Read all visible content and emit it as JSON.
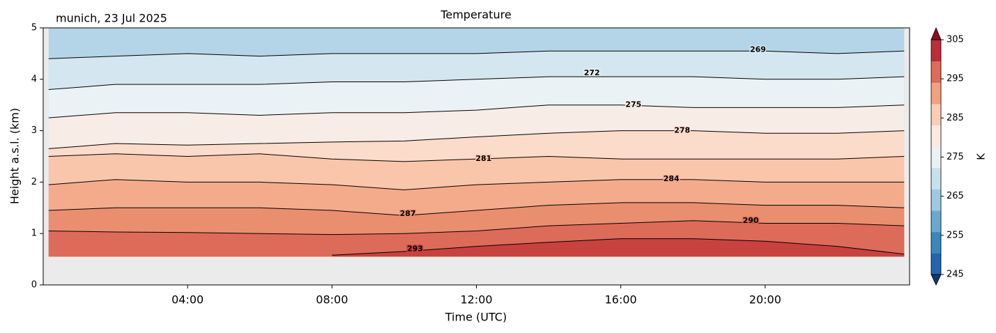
{
  "chart_data": {
    "type": "contour",
    "title": "Temperature",
    "annotation": "munich, 23 Jul 2025",
    "xlabel": "Time (UTC)",
    "ylabel": "Height a.s.l. (km)",
    "xlim": [
      0,
      24
    ],
    "ylim": [
      0,
      5
    ],
    "xticks": [
      {
        "value": 4,
        "label": "04:00"
      },
      {
        "value": 8,
        "label": "08:00"
      },
      {
        "value": 12,
        "label": "12:00"
      },
      {
        "value": 16,
        "label": "16:00"
      },
      {
        "value": 20,
        "label": "20:00"
      }
    ],
    "yticks": [
      0,
      1,
      2,
      3,
      4,
      5
    ],
    "data_bottom": 0.55,
    "background": "#ebebeb",
    "top_fill": "#b4d5e8",
    "x": [
      0.15,
      2,
      4,
      6,
      8,
      10,
      12,
      14,
      16,
      18,
      20,
      22,
      23.85
    ],
    "series": [
      {
        "name": "269",
        "color": "#000000",
        "fill": "#d4e6f0",
        "label_at": [
          19.8,
          4.57
        ],
        "values": [
          4.4,
          4.45,
          4.5,
          4.45,
          4.5,
          4.5,
          4.5,
          4.55,
          4.55,
          4.55,
          4.55,
          4.5,
          4.55
        ]
      },
      {
        "name": "272",
        "color": "#000000",
        "fill": "#ebf2f5",
        "label_at": [
          15.2,
          4.12
        ],
        "values": [
          3.8,
          3.9,
          3.9,
          3.9,
          3.95,
          3.95,
          4.0,
          4.05,
          4.05,
          4.05,
          4.0,
          4.0,
          4.05
        ]
      },
      {
        "name": "275",
        "color": "#000000",
        "fill": "#f8ece6",
        "label_at": [
          16.35,
          3.5
        ],
        "values": [
          3.25,
          3.35,
          3.35,
          3.3,
          3.35,
          3.35,
          3.4,
          3.5,
          3.5,
          3.45,
          3.45,
          3.45,
          3.5
        ]
      },
      {
        "name": "278",
        "color": "#000000",
        "fill": "#fbdbc9",
        "label_at": [
          17.7,
          3.0
        ],
        "values": [
          2.65,
          2.75,
          2.72,
          2.75,
          2.78,
          2.8,
          2.88,
          2.95,
          3.0,
          3.0,
          2.95,
          2.95,
          3.0
        ]
      },
      {
        "name": "281",
        "color": "#000000",
        "fill": "#f9c6ab",
        "label_at": [
          12.2,
          2.45
        ],
        "values": [
          2.5,
          2.55,
          2.5,
          2.55,
          2.45,
          2.4,
          2.45,
          2.5,
          2.45,
          2.45,
          2.45,
          2.45,
          2.5
        ]
      },
      {
        "name": "284",
        "color": "#000000",
        "fill": "#f4ab8c",
        "label_at": [
          17.4,
          2.06
        ],
        "values": [
          1.95,
          2.05,
          2.0,
          2.0,
          1.95,
          1.85,
          1.95,
          2.0,
          2.05,
          2.05,
          2.0,
          2.0,
          2.0
        ]
      },
      {
        "name": "287",
        "color": "#000000",
        "fill": "#ea8e70",
        "label_at": [
          10.1,
          1.38
        ],
        "values": [
          1.45,
          1.5,
          1.5,
          1.5,
          1.45,
          1.35,
          1.45,
          1.55,
          1.6,
          1.6,
          1.55,
          1.55,
          1.5
        ]
      },
      {
        "name": "290",
        "color": "#000000",
        "fill": "#dd6b59",
        "label_at": [
          19.6,
          1.25
        ],
        "values": [
          1.05,
          1.03,
          1.02,
          1.0,
          0.98,
          1.0,
          1.05,
          1.15,
          1.2,
          1.25,
          1.2,
          1.2,
          1.15
        ]
      },
      {
        "name": "293",
        "color": "#000000",
        "fill": "#c8423f",
        "label_at": [
          10.3,
          0.7
        ],
        "values": [
          null,
          null,
          null,
          null,
          0.58,
          0.65,
          0.75,
          0.83,
          0.9,
          0.9,
          0.85,
          0.75,
          0.6
        ]
      }
    ],
    "colorbar": {
      "label": "K",
      "lim": [
        245,
        305
      ],
      "ticks": [
        245,
        255,
        265,
        275,
        285,
        295,
        305
      ],
      "colors": [
        "#0b3a6f",
        "#2166ac",
        "#3a87bd",
        "#6aa9cf",
        "#9ccae1",
        "#c7e0ed",
        "#e9f1f5",
        "#f9e9df",
        "#fbcdb5",
        "#f2a17f",
        "#dd6b59",
        "#bd2d36",
        "#8e0c25"
      ]
    }
  }
}
